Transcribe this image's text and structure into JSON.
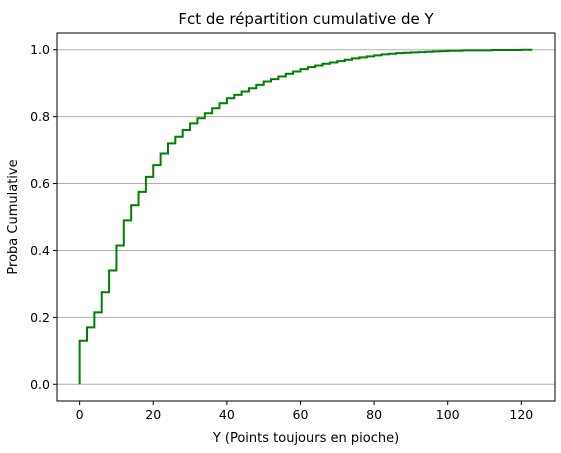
{
  "chart_data": {
    "type": "line",
    "step": true,
    "title": "Fct de répartition cumulative de Y",
    "xlabel": "Y (Points toujours en pioche)",
    "ylabel": "Proba Cumulative",
    "xlim": [
      -6.15,
      129.15
    ],
    "ylim": [
      -0.05,
      1.05
    ],
    "x_ticks": [
      0,
      20,
      40,
      60,
      80,
      100,
      120
    ],
    "y_ticks": [
      0.0,
      0.2,
      0.4,
      0.6,
      0.8,
      1.0
    ],
    "x_tick_labels": [
      "0",
      "20",
      "40",
      "60",
      "80",
      "100",
      "120"
    ],
    "y_tick_labels": [
      "0.0",
      "0.2",
      "0.4",
      "0.6",
      "0.8",
      "1.0"
    ],
    "grid": {
      "axis": "y",
      "visible": true
    },
    "line_color": "#008000",
    "grid_color": "#b0b0b0",
    "series": [
      {
        "x": [
          0,
          0,
          2,
          4,
          6,
          8,
          10,
          12,
          14,
          16,
          18,
          20,
          22,
          24,
          26,
          28,
          30,
          32,
          34,
          36,
          38,
          40,
          42,
          44,
          46,
          48,
          50,
          52,
          54,
          56,
          58,
          60,
          62,
          64,
          66,
          68,
          70,
          72,
          74,
          76,
          78,
          80,
          82,
          84,
          86,
          88,
          90,
          92,
          94,
          96,
          98,
          100,
          104,
          108,
          112,
          116,
          120,
          123
        ],
        "y": [
          0.0,
          0.13,
          0.17,
          0.215,
          0.275,
          0.34,
          0.415,
          0.49,
          0.535,
          0.575,
          0.62,
          0.655,
          0.69,
          0.72,
          0.74,
          0.76,
          0.78,
          0.795,
          0.81,
          0.825,
          0.84,
          0.855,
          0.865,
          0.875,
          0.885,
          0.895,
          0.905,
          0.912,
          0.92,
          0.928,
          0.935,
          0.942,
          0.948,
          0.953,
          0.958,
          0.962,
          0.966,
          0.97,
          0.974,
          0.977,
          0.98,
          0.983,
          0.986,
          0.988,
          0.99,
          0.991,
          0.992,
          0.993,
          0.994,
          0.995,
          0.996,
          0.997,
          0.998,
          0.998,
          0.999,
          0.999,
          1.0,
          1.0
        ]
      }
    ]
  }
}
